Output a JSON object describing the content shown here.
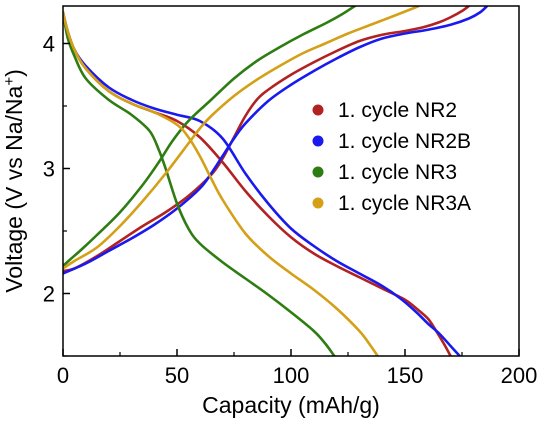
{
  "chart_data": {
    "type": "line",
    "xlabel": "Capacity (mAh/g)",
    "ylabel": "Voltage (V vs Na/Na",
    "ylabel_superscript": "+",
    "ylabel_suffix": ")",
    "xlim": [
      0,
      200
    ],
    "ylim": [
      1.5,
      4.3
    ],
    "xticks": [
      0,
      50,
      100,
      150,
      200
    ],
    "yticks": [
      2,
      3,
      4
    ],
    "xtick_labels": [
      "0",
      "50",
      "100",
      "150",
      "200"
    ],
    "ytick_labels": [
      "2",
      "3",
      "4"
    ],
    "grid": false,
    "legend_position": "right",
    "series": [
      {
        "name": "1. cycle NR2",
        "color": "#b22222",
        "charge": {
          "x": [
            0,
            5,
            15,
            25,
            35,
            45,
            55,
            65,
            70,
            75,
            80,
            85,
            90,
            100,
            110,
            120,
            130,
            140,
            150,
            158,
            165,
            170,
            175,
            178
          ],
          "y": [
            2.18,
            2.2,
            2.3,
            2.42,
            2.54,
            2.65,
            2.78,
            2.95,
            3.08,
            3.25,
            3.42,
            3.55,
            3.63,
            3.75,
            3.85,
            3.94,
            4.02,
            4.07,
            4.1,
            4.13,
            4.17,
            4.21,
            4.26,
            4.3
          ]
        },
        "discharge": {
          "x": [
            0,
            2,
            5,
            10,
            20,
            30,
            40,
            50,
            60,
            70,
            80,
            90,
            100,
            110,
            120,
            130,
            140,
            150,
            155,
            160,
            163,
            167,
            170
          ],
          "y": [
            4.25,
            4.1,
            3.95,
            3.8,
            3.62,
            3.52,
            3.45,
            3.38,
            3.25,
            3.05,
            2.82,
            2.62,
            2.45,
            2.32,
            2.22,
            2.13,
            2.04,
            1.95,
            1.88,
            1.8,
            1.72,
            1.6,
            1.5
          ]
        }
      },
      {
        "name": "1. cycle NR2B",
        "color": "#1a1aee",
        "charge": {
          "x": [
            0,
            10,
            20,
            30,
            40,
            50,
            60,
            65,
            70,
            75,
            80,
            90,
            100,
            110,
            120,
            130,
            140,
            150,
            160,
            170,
            178,
            183,
            186
          ],
          "y": [
            2.16,
            2.24,
            2.34,
            2.44,
            2.55,
            2.68,
            2.84,
            2.96,
            3.1,
            3.24,
            3.36,
            3.54,
            3.67,
            3.78,
            3.88,
            3.97,
            4.04,
            4.08,
            4.11,
            4.15,
            4.2,
            4.25,
            4.3
          ]
        },
        "discharge": {
          "x": [
            0,
            2,
            5,
            10,
            20,
            30,
            40,
            50,
            60,
            70,
            80,
            90,
            100,
            110,
            120,
            130,
            140,
            148,
            155,
            160,
            165,
            170,
            174
          ],
          "y": [
            4.25,
            4.1,
            3.95,
            3.82,
            3.65,
            3.55,
            3.48,
            3.43,
            3.38,
            3.24,
            2.96,
            2.72,
            2.52,
            2.38,
            2.26,
            2.16,
            2.06,
            1.96,
            1.85,
            1.76,
            1.68,
            1.58,
            1.5
          ]
        }
      },
      {
        "name": "1. cycle NR3",
        "color": "#2e7d12",
        "charge": {
          "x": [
            0,
            3,
            8,
            15,
            25,
            35,
            42,
            48,
            55,
            65,
            75,
            85,
            95,
            105,
            115,
            122,
            128
          ],
          "y": [
            2.22,
            2.27,
            2.35,
            2.47,
            2.65,
            2.87,
            3.05,
            3.22,
            3.38,
            3.55,
            3.72,
            3.86,
            3.97,
            4.07,
            4.16,
            4.23,
            4.3
          ]
        },
        "discharge": {
          "x": [
            0,
            2,
            5,
            10,
            20,
            30,
            38,
            42,
            45,
            50,
            55,
            60,
            70,
            80,
            90,
            100,
            110,
            115,
            119
          ],
          "y": [
            4.25,
            4.05,
            3.9,
            3.72,
            3.55,
            3.43,
            3.3,
            3.15,
            3.0,
            2.72,
            2.52,
            2.4,
            2.25,
            2.12,
            1.99,
            1.85,
            1.7,
            1.6,
            1.5
          ]
        }
      },
      {
        "name": "1. cycle NR3A",
        "color": "#d4a017",
        "charge": {
          "x": [
            0,
            5,
            15,
            25,
            35,
            45,
            55,
            60,
            65,
            75,
            85,
            95,
            105,
            115,
            125,
            135,
            145,
            152,
            156
          ],
          "y": [
            2.2,
            2.26,
            2.37,
            2.54,
            2.74,
            2.96,
            3.2,
            3.32,
            3.42,
            3.58,
            3.71,
            3.82,
            3.92,
            4.0,
            4.08,
            4.15,
            4.22,
            4.27,
            4.3
          ]
        },
        "discharge": {
          "x": [
            0,
            2,
            5,
            10,
            20,
            30,
            40,
            50,
            55,
            60,
            65,
            70,
            80,
            90,
            100,
            110,
            120,
            130,
            135,
            138
          ],
          "y": [
            4.25,
            4.1,
            3.95,
            3.8,
            3.62,
            3.52,
            3.45,
            3.35,
            3.25,
            3.1,
            2.92,
            2.75,
            2.48,
            2.3,
            2.16,
            2.03,
            1.88,
            1.7,
            1.58,
            1.5
          ]
        }
      }
    ]
  }
}
